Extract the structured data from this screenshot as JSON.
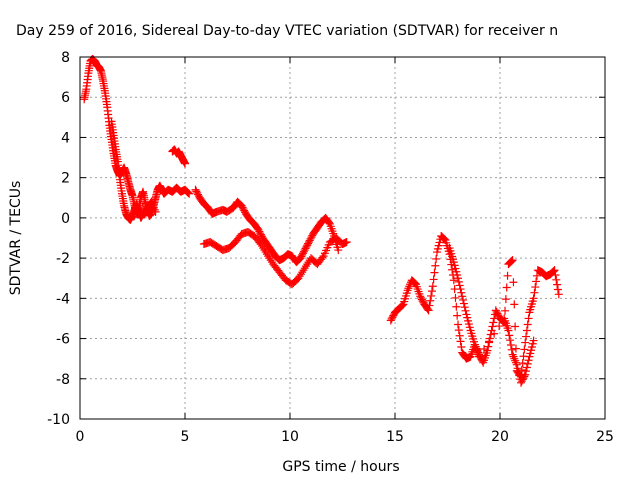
{
  "chart_data": {
    "type": "scatter",
    "title": "Day 259 of 2016, Sidereal Day-to-day VTEC variation (SDTVAR) for receiver n",
    "xlabel": "GPS time / hours",
    "ylabel": "SDTVAR / TECUs",
    "xlim": [
      0,
      25
    ],
    "ylim": [
      -10,
      8
    ],
    "xticks": [
      0,
      5,
      10,
      15,
      20,
      25
    ],
    "yticks": [
      -10,
      -8,
      -6,
      -4,
      -2,
      0,
      2,
      4,
      6,
      8
    ],
    "grid": true,
    "marker": "plus",
    "color": "#ff0000",
    "series": [
      {
        "x": [
          0.2,
          0.3,
          0.4,
          0.5,
          0.6,
          0.7,
          0.8,
          0.9,
          1.0,
          1.1,
          1.2,
          1.3,
          1.4,
          1.5,
          1.6,
          1.7,
          1.8,
          1.9,
          2.0,
          2.1,
          2.2,
          2.3,
          2.4,
          2.5,
          2.6,
          2.7,
          2.8,
          2.9,
          3.0,
          3.1,
          3.2,
          3.3,
          3.4,
          3.5,
          3.6,
          3.7,
          3.8,
          3.9,
          4.0,
          4.2,
          4.4,
          4.6,
          4.8,
          5.0,
          5.2
        ],
        "y": [
          5.9,
          6.4,
          7.2,
          7.8,
          7.9,
          7.8,
          7.6,
          7.5,
          7.3,
          6.8,
          6.2,
          5.5,
          4.6,
          3.9,
          3.2,
          2.6,
          2.3,
          2.1,
          2.3,
          2.5,
          2.2,
          1.8,
          1.4,
          1.1,
          0.6,
          0.2,
          0.5,
          1.0,
          1.3,
          0.8,
          0.4,
          0.1,
          0.2,
          0.6,
          1.0,
          1.4,
          1.6,
          1.4,
          1.2,
          1.4,
          1.3,
          1.5,
          1.3,
          1.4,
          1.2
        ]
      },
      {
        "x": [
          1.5,
          1.6,
          1.7,
          1.8,
          1.9,
          2.0,
          2.1,
          2.2,
          2.3,
          2.4,
          2.5,
          2.6,
          2.7,
          2.8,
          2.9,
          3.0,
          3.2,
          3.4,
          3.6
        ],
        "y": [
          4.8,
          4.1,
          3.4,
          2.8,
          1.9,
          1.2,
          0.6,
          0.2,
          0.0,
          -0.1,
          0.1,
          0.4,
          0.7,
          0.3,
          0.0,
          0.2,
          0.5,
          0.8,
          0.3
        ]
      },
      {
        "x": [
          4.4,
          4.5,
          4.6,
          4.7,
          4.8,
          4.9,
          5.0
        ],
        "y": [
          3.3,
          3.4,
          3.2,
          3.3,
          3.1,
          2.9,
          2.7
        ]
      },
      {
        "x": [
          5.5,
          5.7,
          5.9,
          6.1,
          6.3,
          6.5,
          6.8,
          7.0,
          7.3,
          7.5,
          7.7,
          7.9,
          8.1,
          8.3,
          8.5,
          8.7,
          8.9,
          9.1,
          9.3,
          9.5,
          9.7,
          9.9,
          10.1,
          10.3,
          10.5,
          10.7,
          10.9,
          11.1,
          11.3,
          11.5,
          11.7,
          11.9,
          12.1,
          12.3
        ],
        "y": [
          1.4,
          1.0,
          0.7,
          0.5,
          0.2,
          0.3,
          0.4,
          0.3,
          0.5,
          0.8,
          0.6,
          0.2,
          -0.1,
          -0.3,
          -0.6,
          -1.0,
          -1.3,
          -1.6,
          -1.9,
          -2.1,
          -2.0,
          -1.8,
          -1.9,
          -2.2,
          -2.0,
          -1.6,
          -1.2,
          -0.8,
          -0.5,
          -0.2,
          0.0,
          -0.3,
          -0.9,
          -1.6
        ]
      },
      {
        "x": [
          5.9,
          6.2,
          6.5,
          6.8,
          7.1,
          7.4,
          7.7,
          8.0,
          8.3,
          8.6,
          8.9,
          9.2,
          9.5,
          9.8,
          10.1,
          10.4,
          10.7,
          11.0,
          11.3,
          11.6,
          11.9,
          12.2,
          12.5,
          12.7
        ],
        "y": [
          -1.3,
          -1.2,
          -1.4,
          -1.6,
          -1.5,
          -1.2,
          -0.8,
          -0.7,
          -0.9,
          -1.3,
          -1.8,
          -2.3,
          -2.7,
          -3.1,
          -3.3,
          -3.0,
          -2.5,
          -2.0,
          -2.3,
          -1.9,
          -1.2,
          -1.0,
          -1.3,
          -1.2
        ]
      },
      {
        "x": [
          14.8,
          15.0,
          15.2,
          15.4,
          15.6,
          15.8,
          16.0,
          16.2,
          16.4,
          16.6,
          16.8,
          17.0,
          17.2,
          17.4,
          17.6,
          17.8,
          18.0,
          18.2,
          18.4,
          18.6,
          18.8,
          19.0,
          19.2,
          19.4,
          19.6,
          19.8,
          20.0,
          20.2,
          20.4,
          20.6,
          20.8,
          21.0,
          21.2,
          21.4,
          21.6,
          21.8,
          22.0,
          22.2,
          22.4,
          22.6,
          22.8
        ],
        "y": [
          -5.1,
          -4.7,
          -4.5,
          -4.3,
          -3.6,
          -3.1,
          -3.3,
          -3.9,
          -4.3,
          -4.6,
          -3.4,
          -1.7,
          -0.9,
          -1.1,
          -1.8,
          -3.1,
          -5.3,
          -6.7,
          -7.0,
          -6.9,
          -6.3,
          -6.8,
          -7.2,
          -6.6,
          -5.6,
          -4.6,
          -5.0,
          -5.2,
          -2.3,
          -2.1,
          -7.6,
          -7.9,
          -6.2,
          -4.7,
          -4.0,
          -2.6,
          -2.7,
          -2.9,
          -2.8,
          -2.6,
          -3.8
        ]
      },
      {
        "x": [
          17.6,
          17.8,
          18.0,
          18.2,
          18.4,
          18.6,
          18.8,
          19.0,
          20.2,
          20.4,
          20.6,
          20.8,
          21.0,
          21.2,
          21.4,
          21.6
        ],
        "y": [
          -1.5,
          -2.2,
          -3.0,
          -3.9,
          -4.8,
          -5.6,
          -6.3,
          -6.9,
          -5.0,
          -5.6,
          -6.8,
          -7.3,
          -8.2,
          -7.8,
          -6.9,
          -6.1
        ]
      }
    ]
  }
}
